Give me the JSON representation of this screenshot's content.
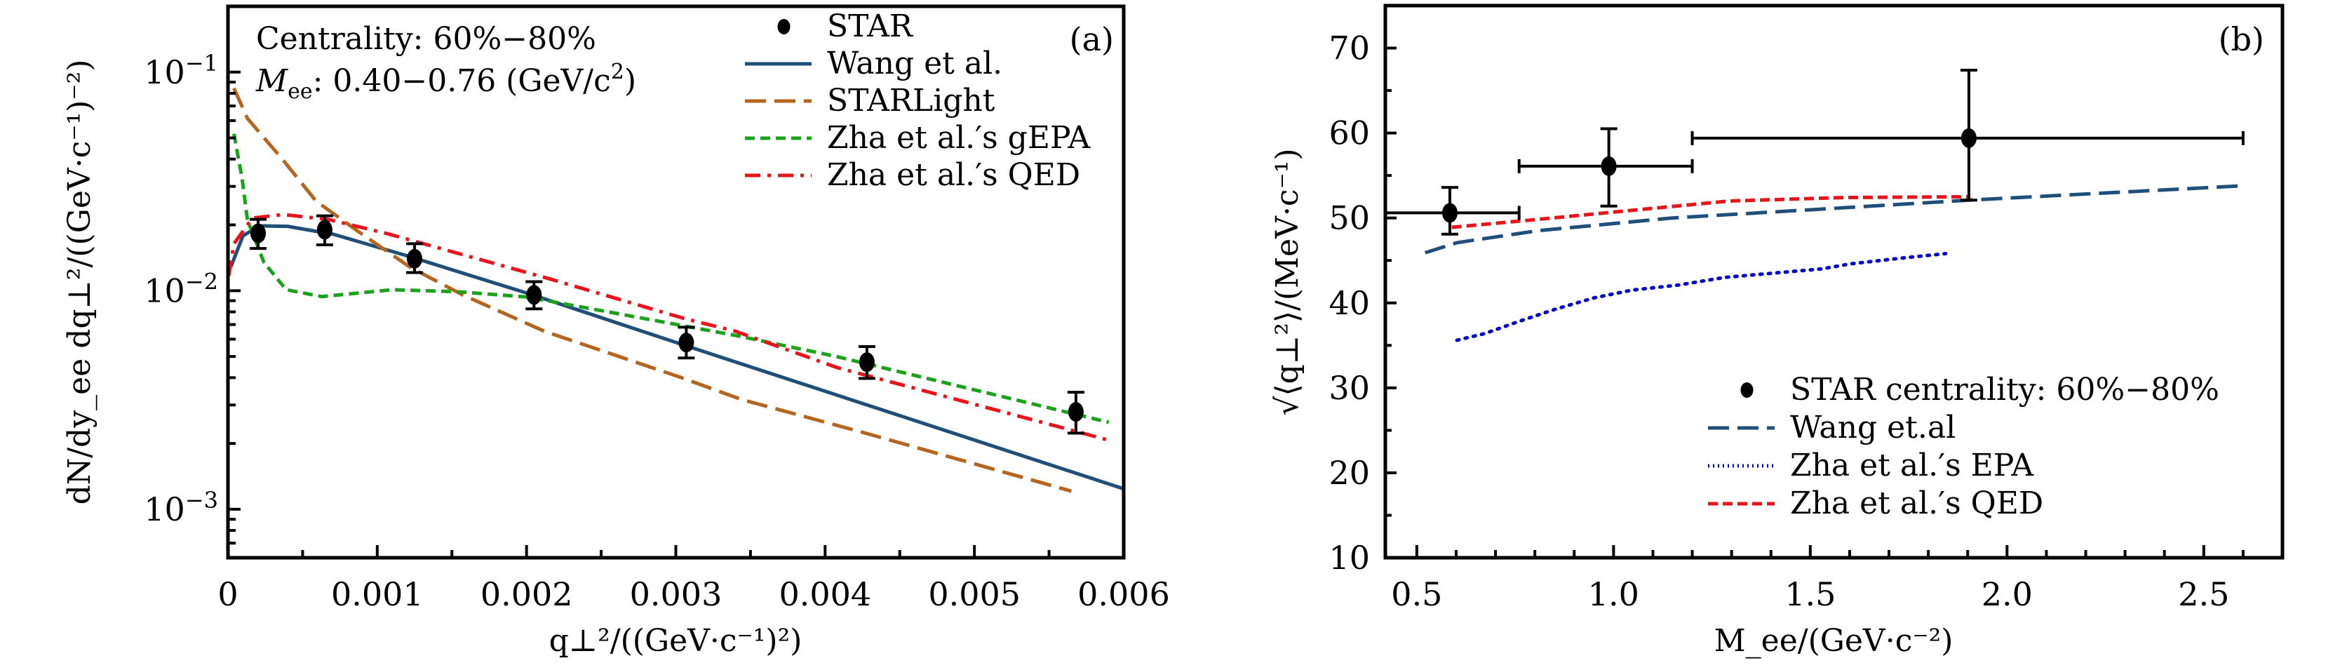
{
  "chart_data": [
    {
      "id": "a",
      "type": "line",
      "panel_label": "(a)",
      "title": "",
      "annotations": [
        "Centrality: 60%−80%",
        "M_ee: 0.40−0.76 (GeV/c²)"
      ],
      "annotation_parts": {
        "line1": "Centrality: 60%−80%",
        "line2_symbol": "M",
        "line2_sub": "ee",
        "line2_rest": ": 0.40−0.76 (GeV/c",
        "line2_sup": "2",
        "line2_close": ")"
      },
      "xlabel": "q⊥²/((GeV·c⁻¹)²)",
      "ylabel": "dN/dy_ee dq⊥²/((GeV·c⁻¹)⁻²)",
      "xscale": "linear",
      "yscale": "log",
      "xlim": [
        0,
        0.006
      ],
      "ylim": [
        0.0006,
        0.2
      ],
      "grid": false,
      "legend_position": "top-right",
      "xticks": [
        0,
        0.001,
        0.002,
        0.003,
        0.004,
        0.005,
        0.006
      ],
      "xtick_labels": [
        "0",
        "0.001",
        "0.002",
        "0.003",
        "0.004",
        "0.005",
        "0.006"
      ],
      "yticks": [
        0.001,
        0.01,
        0.1
      ],
      "ytick_labels": [
        {
          "base": "10",
          "exp": "−3"
        },
        {
          "base": "10",
          "exp": "−2"
        },
        {
          "base": "10",
          "exp": "−1"
        }
      ],
      "points": {
        "name": "STAR",
        "color": "#000000",
        "x": [
          0.000202,
          0.000648,
          0.00125,
          0.00205,
          0.00307,
          0.00428,
          0.00568
        ],
        "y": [
          0.0183,
          0.019,
          0.014,
          0.00957,
          0.00579,
          0.00471,
          0.00279
        ],
        "y_upper": [
          0.0212,
          0.022,
          0.0164,
          0.011,
          0.00681,
          0.00555,
          0.00343
        ],
        "y_lower": [
          0.0156,
          0.0162,
          0.0121,
          0.00826,
          0.00492,
          0.00397,
          0.00223
        ]
      },
      "series": [
        {
          "name": "Wang et al.",
          "color": "#1f4e79",
          "style": "solid",
          "x": [
            2e-05,
            0.0001,
            0.00021,
            0.0004,
            0.00071,
            0.00122,
            0.00204,
            0.00306,
            0.006
          ],
          "y": [
            0.0129,
            0.0178,
            0.0198,
            0.0197,
            0.0181,
            0.0143,
            0.00957,
            0.00562,
            0.00124
          ]
        },
        {
          "name": "STARLight",
          "color": "#b5651d",
          "style": "long-dash",
          "x": [
            4e-05,
            0.00013,
            0.00036,
            0.00059,
            0.00087,
            0.00122,
            0.00157,
            0.00212,
            0.00302,
            0.00344,
            0.00423,
            0.00565
          ],
          "y": [
            0.0844,
            0.0614,
            0.0403,
            0.0257,
            0.0187,
            0.0128,
            0.00958,
            0.00652,
            0.00404,
            0.00318,
            0.00227,
            0.00121
          ]
        },
        {
          "name": "Zha et al.′s gEPA",
          "color": "#1aa31a",
          "style": "dashed",
          "x": [
            4e-05,
            9.4e-05,
            0.00013,
            0.00024,
            0.00039,
            0.00063,
            0.0011,
            0.00153,
            0.002,
            0.00262,
            0.0034,
            0.00408,
            0.0059
          ],
          "y": [
            0.0522,
            0.0328,
            0.0211,
            0.0135,
            0.0101,
            0.0094,
            0.0101,
            0.0099,
            0.00936,
            0.00783,
            0.00624,
            0.00499,
            0.0025
          ]
        },
        {
          "name": "Zha et al.′s QED",
          "color": "#e8141b",
          "style": "dash-dot",
          "x": [
            5e-06,
            4e-05,
            0.000164,
            0.00037,
            0.00067,
            0.00106,
            0.00215,
            0.00306,
            0.0034,
            0.00408,
            0.0059
          ],
          "y": [
            0.0117,
            0.0164,
            0.0215,
            0.0223,
            0.0212,
            0.0183,
            0.01135,
            0.00745,
            0.00652,
            0.00445,
            0.00207
          ]
        }
      ]
    },
    {
      "id": "b",
      "type": "line",
      "panel_label": "(b)",
      "title": "",
      "xlabel": "M_ee/(GeV·c⁻²)",
      "ylabel": "√⟨q⊥²⟩/(MeV·c⁻¹)",
      "xscale": "linear",
      "yscale": "linear",
      "xlim": [
        0.42,
        2.7
      ],
      "ylim": [
        10,
        75
      ],
      "grid": false,
      "legend_position": "bottom-right",
      "xticks": [
        0.5,
        1.0,
        1.5,
        2.0,
        2.5
      ],
      "xtick_labels": [
        "0.5",
        "1.0",
        "1.5",
        "2.0",
        "2.5"
      ],
      "yticks": [
        10,
        20,
        30,
        40,
        50,
        60,
        70
      ],
      "ytick_labels": [
        "10",
        "20",
        "30",
        "40",
        "50",
        "60",
        "70"
      ],
      "points": {
        "name": "STAR centrality: 60%−80%",
        "color": "#000000",
        "x": [
          0.584,
          0.988,
          1.903
        ],
        "y": [
          50.6,
          56.1,
          59.4
        ],
        "x_low": [
          0.4,
          0.76,
          1.2
        ],
        "x_high": [
          0.76,
          1.2,
          2.6
        ],
        "y_upper": [
          53.6,
          60.5,
          67.4
        ],
        "y_lower": [
          48.1,
          51.4,
          52.1
        ]
      },
      "series": [
        {
          "name": "Wang et.al",
          "color": "#1f4e79",
          "style": "long-dash",
          "x": [
            0.521,
            0.603,
            0.807,
            1.149,
            1.512,
            1.903,
            2.602
          ],
          "y": [
            45.9,
            47.1,
            48.5,
            50.0,
            51.0,
            52.1,
            53.8
          ]
        },
        {
          "name": "Zha et al.′s EPA",
          "color": "#0000cc",
          "style": "dotted",
          "x": [
            0.602,
            0.673,
            0.764,
            0.855,
            0.951,
            1.046,
            1.165,
            1.283,
            1.429,
            1.529,
            1.602,
            1.737,
            1.844
          ],
          "y": [
            35.6,
            36.4,
            37.9,
            39.3,
            40.6,
            41.5,
            42.1,
            43.0,
            43.6,
            44.0,
            44.6,
            45.3,
            45.8
          ]
        },
        {
          "name": "Zha et al.′s QED",
          "color": "#e8141b",
          "style": "short-dash",
          "x": [
            0.589,
            0.8,
            1.047,
            1.295,
            1.585,
            1.903
          ],
          "y": [
            48.9,
            49.8,
            50.9,
            52.0,
            52.4,
            52.5
          ]
        }
      ]
    }
  ]
}
